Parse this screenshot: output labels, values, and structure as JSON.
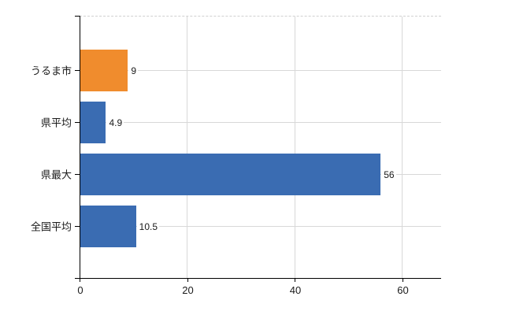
{
  "chart_data": {
    "type": "bar",
    "orientation": "horizontal",
    "title": "",
    "categories": [
      "うるま市",
      "県平均",
      "県最大",
      "全国平均"
    ],
    "values": [
      9,
      4.9,
      56,
      10.5
    ],
    "value_labels": [
      "9",
      "4.9",
      "56",
      "10.5"
    ],
    "series": [
      {
        "name": "",
        "values": [
          9,
          4.9,
          56,
          10.5
        ]
      }
    ],
    "bar_colors": [
      "#F08C2D",
      "#3A6CB2",
      "#3A6CB2",
      "#3A6CB2"
    ],
    "highlight_index": 0,
    "x_ticks": [
      0,
      20,
      40,
      60
    ],
    "x_tick_labels": [
      "0",
      "20",
      "40",
      "60"
    ],
    "xlim": [
      0,
      67.3
    ],
    "xlabel": "",
    "ylabel": "",
    "grid": true,
    "legend": false,
    "colors": {
      "highlight_bar": "#F08C2D",
      "default_bar": "#3A6CB2",
      "gridline": "#D8D8D8",
      "top_border": "#D0D0D0",
      "axis": "#000000",
      "text": "#1A1A1A",
      "background": "#FFFFFF"
    }
  }
}
